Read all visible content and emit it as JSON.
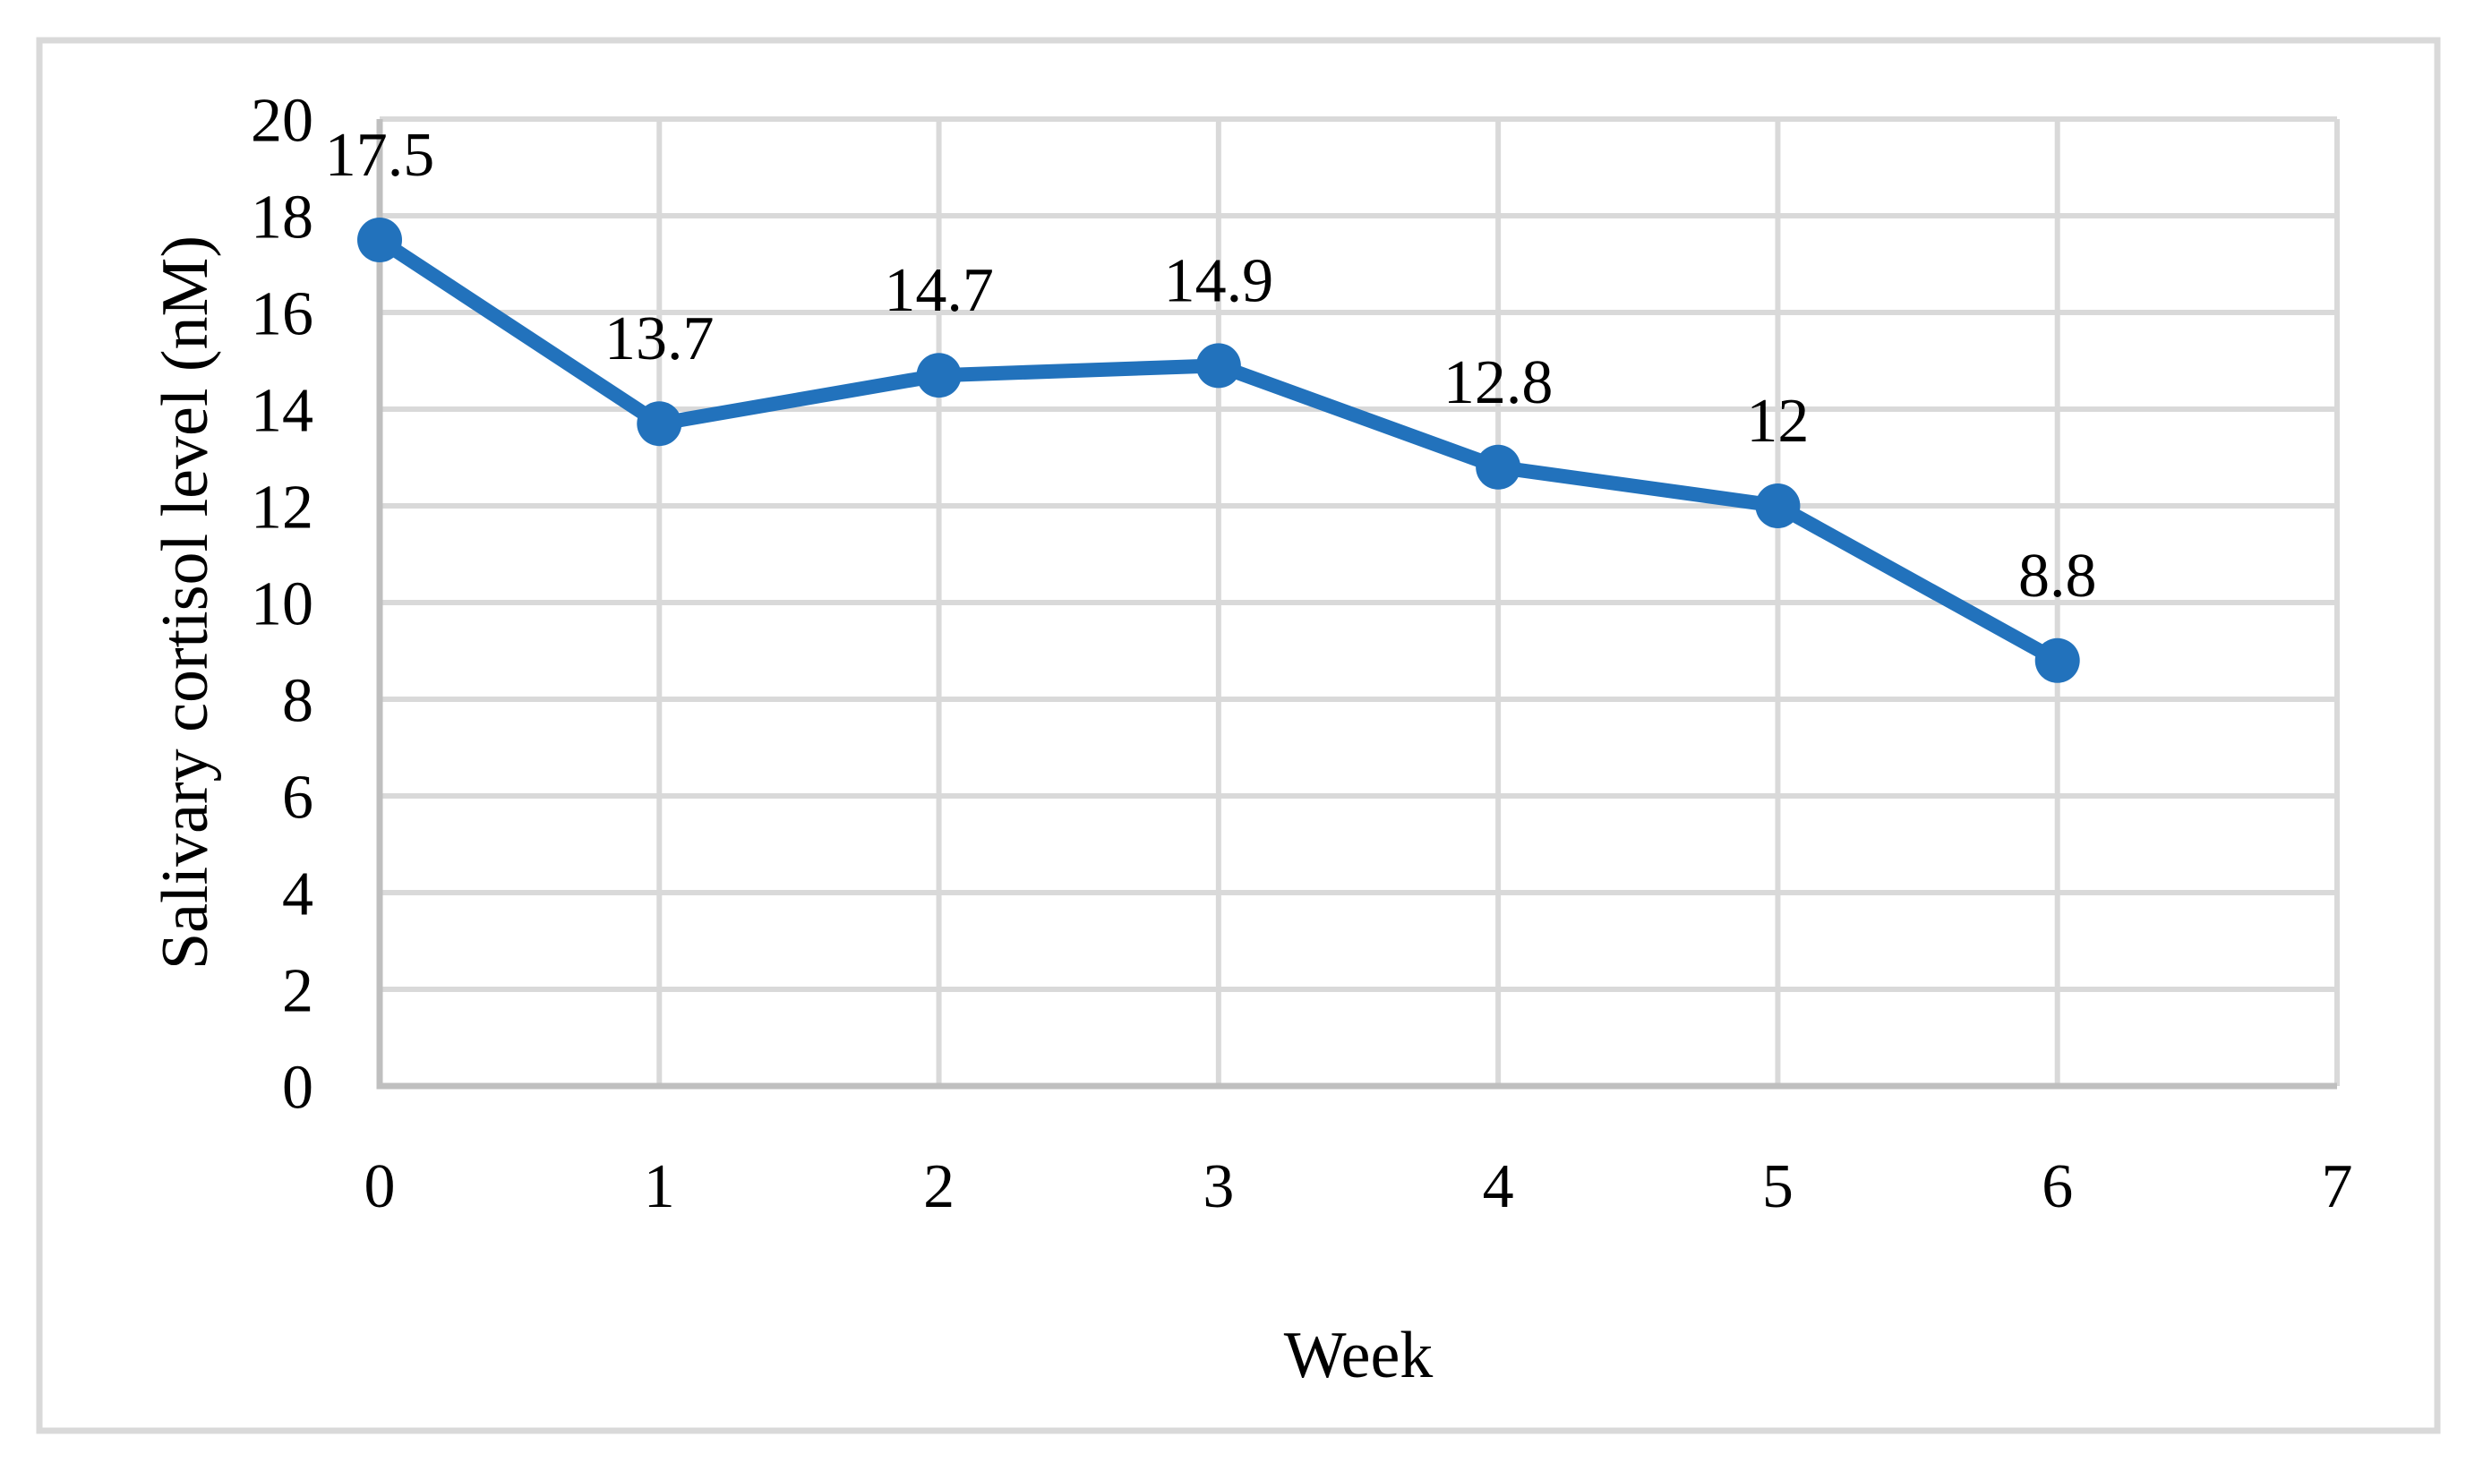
{
  "figure": {
    "background": "#FFFFFF",
    "border_color": "#D9D9D9"
  },
  "chart_data": {
    "type": "line",
    "title": "",
    "xlabel": "Week",
    "ylabel": "Salivary cortisol level (nM)",
    "x": [
      0,
      1,
      2,
      3,
      4,
      5,
      6
    ],
    "values": [
      17.5,
      13.7,
      14.7,
      14.9,
      12.8,
      12,
      8.8
    ],
    "data_labels": [
      "17.5",
      "13.7",
      "14.7",
      "14.9",
      "12.8",
      "12",
      "8.8"
    ],
    "xlim": [
      0,
      7
    ],
    "ylim": [
      0,
      20
    ],
    "x_ticks": [
      0,
      1,
      2,
      3,
      4,
      5,
      6,
      7
    ],
    "x_tick_labels": [
      "0",
      "1",
      "2",
      "3",
      "4",
      "5",
      "6",
      "7"
    ],
    "y_ticks": [
      0,
      2,
      4,
      6,
      8,
      10,
      12,
      14,
      16,
      18,
      20
    ],
    "y_tick_labels": [
      "0",
      "2",
      "4",
      "6",
      "8",
      "10",
      "12",
      "14",
      "16",
      "18",
      "20"
    ],
    "grid": true,
    "legend": "none",
    "marker": "circle",
    "series_color": "#2272BC",
    "gridline_color": "#D9D9D9",
    "axis_color": "#BFBFBF",
    "text_color": "#000000"
  }
}
